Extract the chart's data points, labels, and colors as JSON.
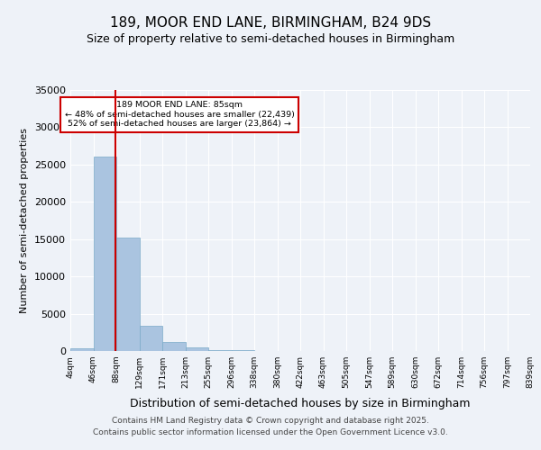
{
  "title_line1": "189, MOOR END LANE, BIRMINGHAM, B24 9DS",
  "title_line2": "Size of property relative to semi-detached houses in Birmingham",
  "xlabel": "Distribution of semi-detached houses by size in Birmingham",
  "ylabel": "Number of semi-detached properties",
  "bin_labels": [
    "4sqm",
    "46sqm",
    "88sqm",
    "129sqm",
    "171sqm",
    "213sqm",
    "255sqm",
    "296sqm",
    "338sqm",
    "380sqm",
    "422sqm",
    "463sqm",
    "505sqm",
    "547sqm",
    "589sqm",
    "630sqm",
    "672sqm",
    "714sqm",
    "756sqm",
    "797sqm",
    "839sqm"
  ],
  "bar_values": [
    350,
    26100,
    15200,
    3400,
    1200,
    500,
    180,
    80,
    40,
    20,
    10,
    5,
    3,
    2,
    1,
    1,
    0,
    0,
    0,
    0
  ],
  "bar_color": "#aac4e0",
  "bar_edge_color": "#7aaac8",
  "property_sqm": 85,
  "smaller_pct": 48,
  "smaller_count": 22439,
  "larger_pct": 52,
  "larger_count": 23864,
  "annotation_label": "189 MOOR END LANE: 85sqm",
  "ylim": [
    0,
    35000
  ],
  "yticks": [
    0,
    5000,
    10000,
    15000,
    20000,
    25000,
    30000,
    35000
  ],
  "red_line_color": "#cc0000",
  "annotation_box_color": "#ffffff",
  "annotation_box_edge": "#cc0000",
  "footer_line1": "Contains HM Land Registry data © Crown copyright and database right 2025.",
  "footer_line2": "Contains public sector information licensed under the Open Government Licence v3.0.",
  "bg_color": "#eef2f8",
  "plot_bg_color": "#eef2f8"
}
